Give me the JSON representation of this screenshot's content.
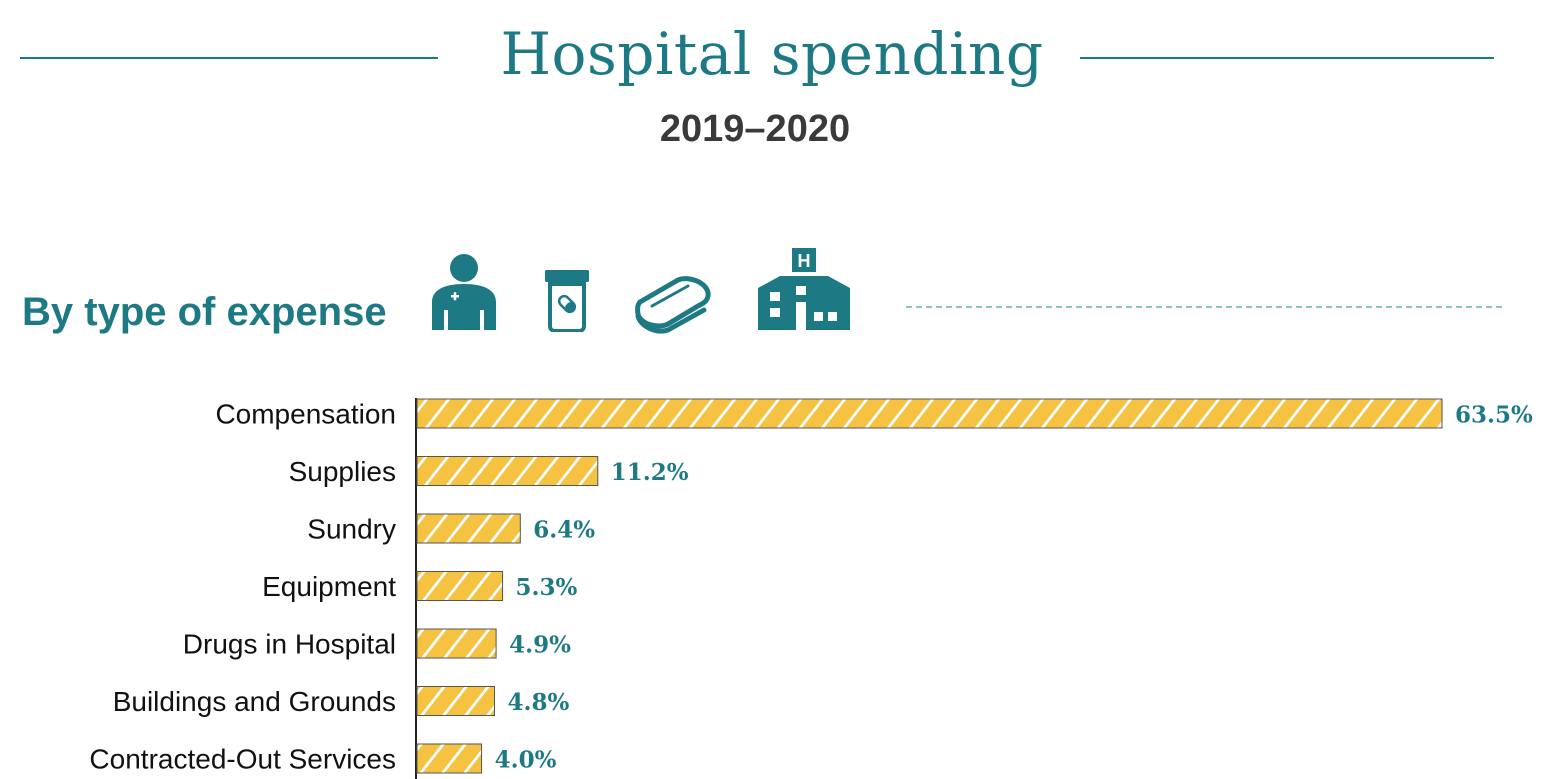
{
  "header": {
    "title": "Hospital spending",
    "subtitle": "2019–2020"
  },
  "section": {
    "heading": "By type of expense",
    "icons": [
      "health-worker-icon",
      "pill-bottle-icon",
      "linen-icon",
      "hospital-building-icon"
    ]
  },
  "colors": {
    "accent": "#1d7a85",
    "bar_fill": "#f5c242",
    "bar_stripe": "#ffffff",
    "bar_border": "#555555",
    "label_text": "#111111"
  },
  "chart_data": {
    "type": "bar",
    "orientation": "horizontal",
    "categories": [
      "Compensation",
      "Supplies",
      "Sundry",
      "Equipment",
      "Drugs in Hospital",
      "Buildings and Grounds",
      "Contracted-Out Services"
    ],
    "values": [
      63.5,
      11.2,
      6.4,
      5.3,
      4.9,
      4.8,
      4.0
    ],
    "value_labels": [
      "63.5%",
      "11.2%",
      "6.4%",
      "5.3%",
      "4.9%",
      "4.8%",
      "4.0%"
    ],
    "unit": "%",
    "xlim": [
      0,
      63.5
    ],
    "grid": false,
    "legend": "none"
  }
}
